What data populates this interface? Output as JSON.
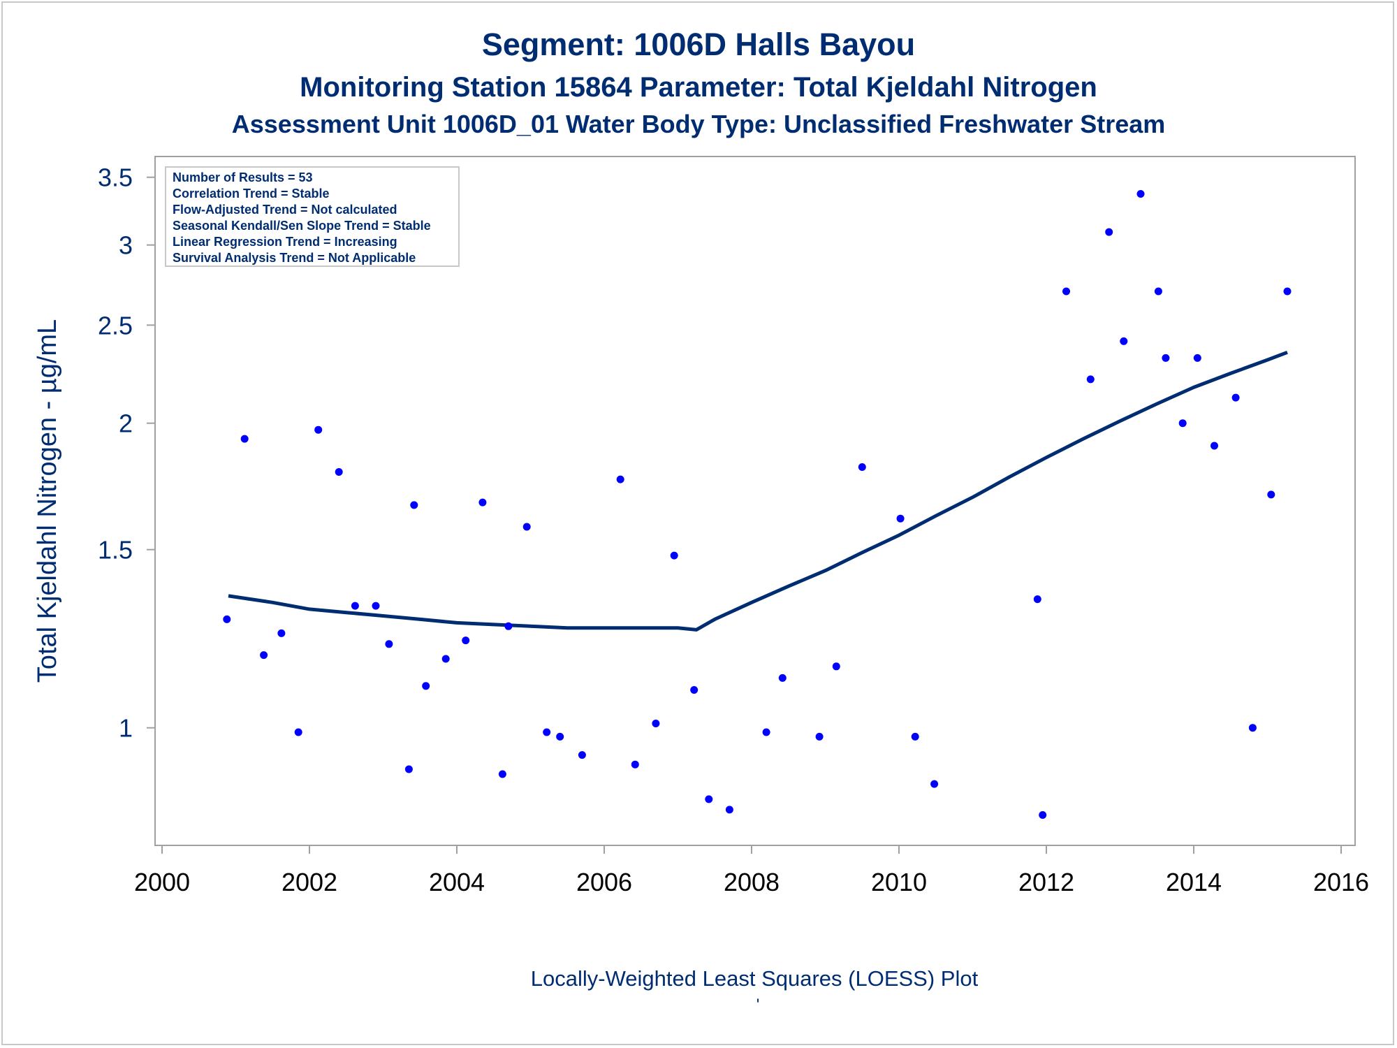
{
  "colors": {
    "title": "#002d72",
    "points": "#0000ff",
    "trend": "#002d72",
    "axis": "#a0a0a0"
  },
  "chart_data": {
    "type": "scatter",
    "title": "Segment: 1006D  Halls Bayou",
    "subtitle": "Monitoring Station 15864 Parameter: Total Kjeldahl Nitrogen",
    "subtitle2": "Assessment Unit 1006D_01   Water Body Type: Unclassified Freshwater Stream",
    "xlabel": "",
    "ylabel": "Total Kjeldahl Nitrogen -  µg/mL",
    "footnote": "Locally-Weighted Least Squares (LOESS) Plot",
    "footnote2": "'",
    "y_scale": "log",
    "xlim": [
      2000,
      2016
    ],
    "ylim": [
      0.78,
      3.6
    ],
    "x_ticks": [
      2000,
      2002,
      2004,
      2006,
      2008,
      2010,
      2012,
      2014,
      2016
    ],
    "y_ticks": [
      1,
      1.5,
      2,
      2.5,
      3,
      3.5
    ],
    "y_tick_labels": [
      "1",
      "1.5",
      "2",
      "2.5",
      "3",
      "3.5"
    ],
    "legend_position": "top-left",
    "legend": [
      "Number of Results = 53",
      "Correlation Trend = Stable",
      "Flow-Adjusted Trend = Not calculated",
      "Seasonal Kendall/Sen Slope Trend = Stable",
      "Linear Regression Trend = Increasing",
      "Survival Analysis Trend = Not Applicable"
    ],
    "series": [
      {
        "kind": "points",
        "x": [
          2000.88,
          2001.12,
          2001.38,
          2001.62,
          2001.85,
          2002.12,
          2002.4,
          2002.62,
          2002.9,
          2003.08,
          2003.35,
          2003.42,
          2003.58,
          2003.85,
          2004.12,
          2004.35,
          2004.62,
          2004.7,
          2004.95,
          2005.22,
          2005.4,
          2005.7,
          2006.22,
          2006.42,
          2006.7,
          2006.95,
          2007.22,
          2007.42,
          2007.7,
          2008.2,
          2008.42,
          2008.92,
          2009.15,
          2009.5,
          2010.02,
          2010.22,
          2010.48,
          2011.88,
          2011.95,
          2012.27,
          2012.6,
          2012.85,
          2013.05,
          2013.28,
          2013.52,
          2013.62,
          2013.85,
          2014.05,
          2014.28,
          2014.57,
          2014.8,
          2015.05,
          2015.27
        ],
        "y": [
          1.28,
          1.93,
          1.18,
          1.24,
          0.99,
          1.97,
          1.79,
          1.32,
          1.32,
          1.21,
          0.91,
          1.66,
          1.1,
          1.17,
          1.22,
          1.67,
          0.9,
          1.26,
          1.58,
          0.99,
          0.98,
          0.94,
          1.76,
          0.92,
          1.01,
          1.48,
          1.09,
          0.85,
          0.83,
          0.99,
          1.12,
          0.98,
          1.15,
          1.81,
          1.61,
          0.98,
          0.88,
          1.34,
          0.82,
          2.7,
          2.21,
          3.09,
          2.41,
          3.37,
          2.7,
          2.32,
          2.0,
          2.32,
          1.9,
          2.12,
          1.0,
          1.7,
          2.7
        ]
      },
      {
        "kind": "line",
        "x": [
          2000.9,
          2001.5,
          2002.0,
          2002.5,
          2003.0,
          2003.5,
          2004.0,
          2004.5,
          2005.0,
          2005.5,
          2006.0,
          2006.5,
          2007.0,
          2007.25,
          2007.5,
          2008.0,
          2008.5,
          2009.0,
          2009.5,
          2010.0,
          2010.5,
          2011.0,
          2011.5,
          2012.0,
          2012.5,
          2013.0,
          2013.5,
          2014.0,
          2014.5,
          2015.0,
          2015.27
        ],
        "y": [
          1.35,
          1.33,
          1.31,
          1.3,
          1.29,
          1.28,
          1.27,
          1.265,
          1.26,
          1.255,
          1.255,
          1.255,
          1.255,
          1.25,
          1.28,
          1.33,
          1.38,
          1.43,
          1.49,
          1.55,
          1.62,
          1.69,
          1.77,
          1.85,
          1.93,
          2.01,
          2.09,
          2.17,
          2.24,
          2.31,
          2.35
        ]
      }
    ]
  }
}
